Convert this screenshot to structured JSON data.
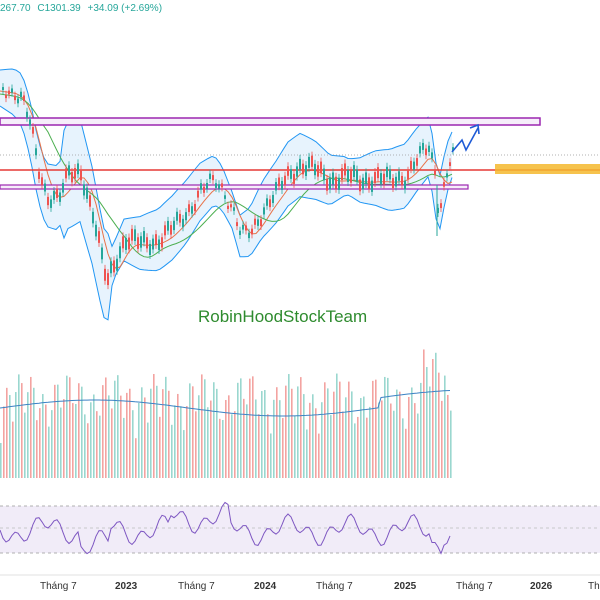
{
  "header": {
    "low_fragment": "267.70",
    "close_label": "C1301.39",
    "change": "+34.09 (+2.69%)"
  },
  "watermark": "RobinHoodStockTeam",
  "x_axis": {
    "labels": [
      "Tháng 7",
      "2023",
      "Tháng 7",
      "2024",
      "Tháng 7",
      "2025",
      "Tháng 7",
      "2026",
      "Th"
    ]
  },
  "colors": {
    "up": "#26a69a",
    "down": "#ef5350",
    "bollinger_band": "#2196f3",
    "bollinger_fill": "#ddeefc",
    "ma_fast": "#e8734a",
    "ma_slow": "#4caf50",
    "resistance_zone": "#9c27b0",
    "support_line": "#e53935",
    "target_zone": "#f5b82e",
    "forecast_arrow": "#1e5bd6",
    "volume_ma": "#3b82c4",
    "rsi_line": "#7e57c2",
    "rsi_band": "#ede7f6",
    "watermark": "#2e8b2e"
  },
  "icons": {
    "forecast_arrow": "up-zigzag-arrow-icon"
  }
}
